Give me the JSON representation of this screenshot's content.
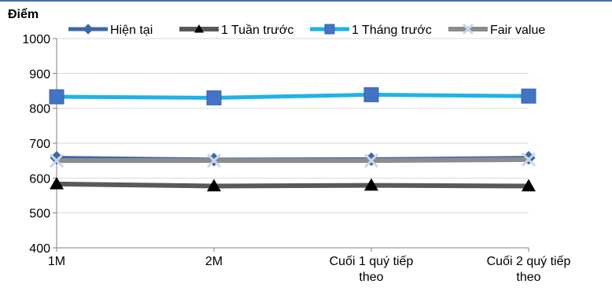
{
  "chart_data": {
    "type": "line",
    "unit_label": "Điểm",
    "categories": [
      [
        "1M"
      ],
      [
        "2M"
      ],
      [
        "Cuối 1 quý tiếp",
        "theo"
      ],
      [
        "Cuối 2 quý tiếp",
        "theo"
      ]
    ],
    "ylim": [
      400,
      1000
    ],
    "yticks": [
      400,
      500,
      600,
      700,
      800,
      900,
      1000
    ],
    "grid": "horizontal",
    "legend_position": "top",
    "series": [
      {
        "name": "Hiện tại",
        "values": [
          658,
          653,
          654,
          658
        ],
        "color": "#3D68A8",
        "marker": "diamond"
      },
      {
        "name": "1 Tuần trước",
        "values": [
          583,
          577,
          579,
          577
        ],
        "color": "#595959",
        "marker": "triangle"
      },
      {
        "name": "1 Tháng trước",
        "values": [
          833,
          830,
          839,
          835
        ],
        "color": "#1FB2EA",
        "marker": "square"
      },
      {
        "name": "Fair value",
        "values": [
          650,
          650,
          650,
          653
        ],
        "color": "#8C8C8C",
        "marker": "x"
      }
    ]
  }
}
